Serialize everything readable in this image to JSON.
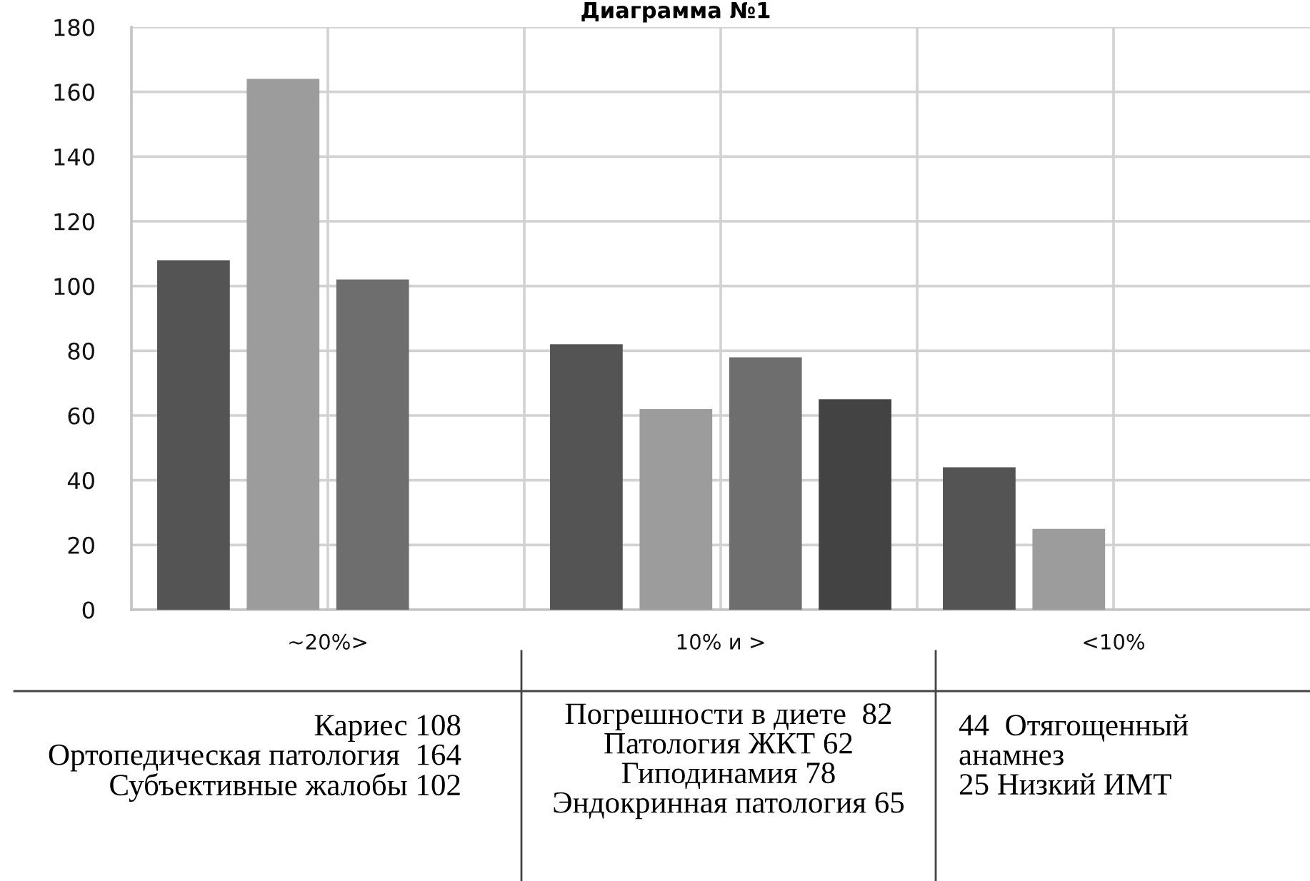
{
  "chart_data": {
    "type": "bar",
    "title": "Диаграмма №1",
    "categories": [
      "~20%>",
      "10% и >",
      "<10%"
    ],
    "series": [
      {
        "color": "#545454",
        "values": [
          108,
          82,
          44
        ]
      },
      {
        "color": "#9c9c9c",
        "values": [
          164,
          62,
          25
        ]
      },
      {
        "color": "#6e6e6e",
        "values": [
          102,
          78,
          null
        ]
      },
      {
        "color": "#434343",
        "values": [
          null,
          65,
          null
        ]
      }
    ],
    "ylim": [
      0,
      180
    ],
    "yticks": [
      0,
      20,
      40,
      60,
      80,
      100,
      120,
      140,
      160,
      180
    ],
    "grid": true,
    "annotations": [
      "Кариес 108\nОртопедическая патология  164\nСубъективные жалобы 102",
      "Погрешности в диете  82\nПатология ЖКТ 62\nГиподинамия 78\nЭндокринная патология 65",
      "44  Отягощенный\nанамнез\n25 Низкий ИМТ"
    ]
  }
}
